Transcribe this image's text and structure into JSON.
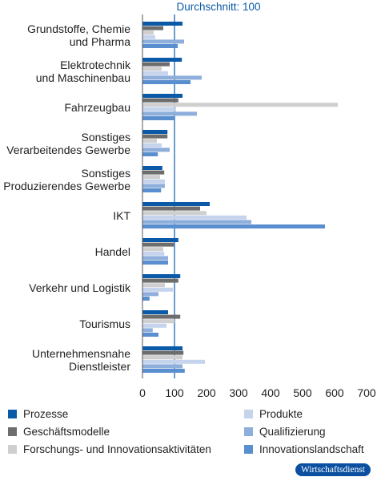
{
  "chart_data": {
    "type": "bar",
    "orientation": "horizontal",
    "title": "Durchschnitt: 100",
    "reference_value": 100,
    "categories": [
      [
        "Grundstoffe, Chemie",
        "und Pharma"
      ],
      [
        "Elektrotechnik",
        "und Maschinenbau"
      ],
      [
        "Fahrzeugbau"
      ],
      [
        "Sonstiges",
        "Verarbeitendes Gewerbe"
      ],
      [
        "Sonstiges",
        "Produzierendes Gewerbe"
      ],
      [
        "IKT"
      ],
      [
        "Handel"
      ],
      [
        "Verkehr und Logistik"
      ],
      [
        "Tourismus"
      ],
      [
        "Unternehmensnahe",
        "Dienstleister"
      ]
    ],
    "series": [
      {
        "name": "Prozesse",
        "color": "#0a5aa8",
        "values": [
          125,
          123,
          125,
          78,
          62,
          210,
          112,
          118,
          80,
          125
        ]
      },
      {
        "name": "Geschäftsmodelle",
        "color": "#6d6d6d",
        "values": [
          65,
          85,
          112,
          78,
          68,
          180,
          98,
          112,
          118,
          128
        ]
      },
      {
        "name": "Forschungs- und Innovationsaktivitäten",
        "color": "#cfcfcf",
        "values": [
          35,
          60,
          610,
          45,
          55,
          200,
          65,
          70,
          100,
          125
        ]
      },
      {
        "name": "Produkte",
        "color": "#c5d4ec",
        "values": [
          40,
          80,
          105,
          60,
          70,
          325,
          68,
          95,
          75,
          195
        ]
      },
      {
        "name": "Qualifizierung",
        "color": "#8eaedb",
        "values": [
          130,
          185,
          170,
          85,
          70,
          340,
          80,
          50,
          32,
          125
        ]
      },
      {
        "name": "Innovationslandschaft",
        "color": "#5a8fcf",
        "values": [
          110,
          150,
          100,
          48,
          58,
          570,
          80,
          22,
          50,
          132
        ]
      }
    ],
    "xlim": [
      0,
      700
    ],
    "xticks": [
      0,
      100,
      200,
      300,
      400,
      500,
      600,
      700
    ],
    "grid": false,
    "legend_position": "bottom"
  },
  "badge": "Wirtschaftsdienst"
}
